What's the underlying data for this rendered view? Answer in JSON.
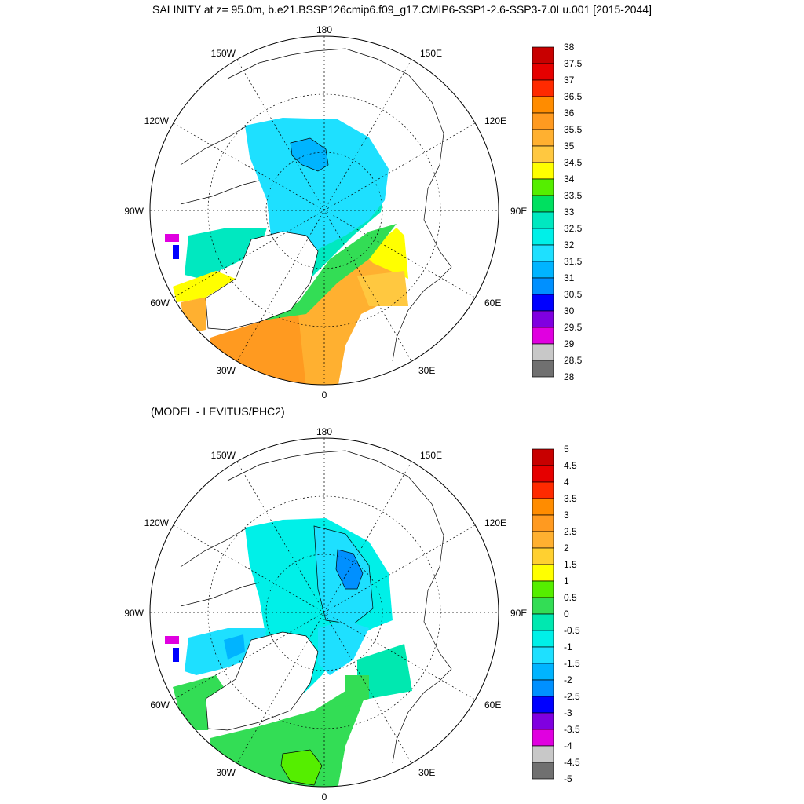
{
  "title": "SALINITY at z=  95.0m, b.e21.BSSP126cmip6.f09_g17.CMIP6-SSP1-2.6-SSP3-7.0Lu.001 [2015-2044]",
  "panels": [
    {
      "id": "top",
      "subtitle": "",
      "longitude_labels": {
        "top": "180",
        "top_right": "150E",
        "right_upper": "120E",
        "right": "90E",
        "right_lower": "60E",
        "bottom_right": "30E",
        "bottom": "0",
        "bottom_left": "30W",
        "left_lower": "60W",
        "left": "90W",
        "left_upper": "120W",
        "top_left": "150W"
      },
      "colorbar": {
        "labels": [
          "38",
          "37.5",
          "37",
          "36.5",
          "36",
          "35.5",
          "35",
          "34.5",
          "34",
          "33.5",
          "33",
          "32.5",
          "32",
          "31.5",
          "31",
          "30.5",
          "30",
          "29.5",
          "29",
          "28.5",
          "28"
        ],
        "colors": [
          "#c80000",
          "#e60000",
          "#ff2a00",
          "#ff8c00",
          "#ff9a20",
          "#ffb030",
          "#ffc840",
          "#ffff00",
          "#55ee00",
          "#00e060",
          "#00e8c0",
          "#00f0e8",
          "#1ee0ff",
          "#00b4ff",
          "#0090ff",
          "#0000ff",
          "#8000e0",
          "#e000e0",
          "#c8c8c8",
          "#707070"
        ]
      }
    },
    {
      "id": "bottom",
      "subtitle": "(MODEL - LEVITUS/PHC2)",
      "longitude_labels": {
        "top": "180",
        "top_right": "150E",
        "right_upper": "120E",
        "right": "90E",
        "right_lower": "60E",
        "bottom_right": "30E",
        "bottom": "0",
        "bottom_left": "30W",
        "left_lower": "60W",
        "left": "90W",
        "left_upper": "120W",
        "top_left": "150W"
      },
      "colorbar": {
        "labels": [
          "5",
          "4.5",
          "4",
          "3.5",
          "3",
          "2.5",
          "2",
          "1.5",
          "1",
          "0.5",
          "0",
          "-0.5",
          "-1",
          "-1.5",
          "-2",
          "-2.5",
          "-3",
          "-3.5",
          "-4",
          "-4.5",
          "-5"
        ],
        "colors": [
          "#c80000",
          "#e60000",
          "#ff2a00",
          "#ff8c00",
          "#ff9a20",
          "#ffb030",
          "#ffd030",
          "#ffff00",
          "#55ee00",
          "#33dd55",
          "#00e8b0",
          "#00f0e8",
          "#1ee0ff",
          "#00b4ff",
          "#0090ff",
          "#0000ff",
          "#8000e0",
          "#e000e0",
          "#c8c8c8",
          "#707070"
        ]
      }
    }
  ]
}
